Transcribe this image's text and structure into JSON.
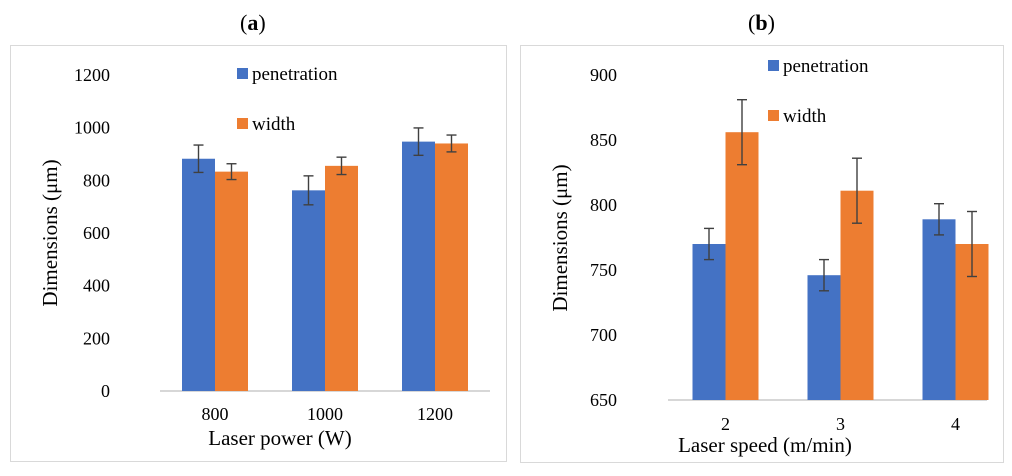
{
  "panels": {
    "a": {
      "label_open": "(",
      "letter": "a",
      "label_close": ")"
    },
    "b": {
      "label_open": "(",
      "letter": "b",
      "label_close": ")"
    }
  },
  "colors": {
    "penetration": "#4472C4",
    "width": "#ED7D31",
    "axis": "#BFBFBF",
    "errorbar": "#404040"
  },
  "chart_data": [
    {
      "type": "bar",
      "panel": "a",
      "title": "",
      "xlabel": "Laser power (W)",
      "ylabel": "Dimensions (μm)",
      "categories": [
        "800",
        "1000",
        "1200"
      ],
      "ylim": [
        0,
        1200
      ],
      "yticks": [
        0,
        200,
        400,
        600,
        800,
        1000,
        1200
      ],
      "grid": false,
      "legend": "top-center",
      "series": [
        {
          "name": "penetration",
          "values": [
            882,
            762,
            947
          ],
          "errors": [
            52,
            55,
            52
          ]
        },
        {
          "name": "width",
          "values": [
            833,
            855,
            940
          ],
          "errors": [
            30,
            33,
            32
          ]
        }
      ]
    },
    {
      "type": "bar",
      "panel": "b",
      "title": "",
      "xlabel": "Laser speed (m/min)",
      "ylabel": "Dimensions  (μm)",
      "categories": [
        "2",
        "3",
        "4"
      ],
      "ylim": [
        650,
        900
      ],
      "yticks": [
        650,
        700,
        750,
        800,
        850,
        900
      ],
      "grid": false,
      "legend": "top-center",
      "series": [
        {
          "name": "penetration",
          "values": [
            770,
            746,
            789
          ],
          "errors": [
            12,
            12,
            12
          ]
        },
        {
          "name": "width",
          "values": [
            856,
            811,
            770
          ],
          "errors": [
            25,
            25,
            25
          ]
        }
      ]
    }
  ]
}
